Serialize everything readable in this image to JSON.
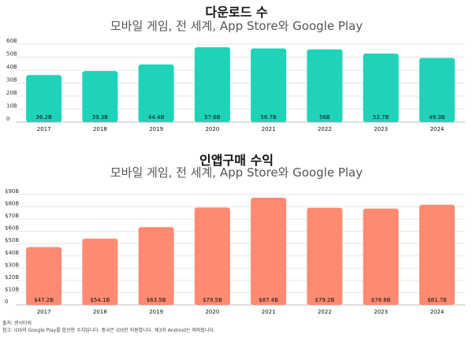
{
  "chart_data": [
    {
      "type": "bar",
      "title": "다운로드 수",
      "subtitle": "모바일 게임, 전 세계, App Store와 Google Play",
      "categories": [
        "2017",
        "2018",
        "2019",
        "2020",
        "2021",
        "2022",
        "2023",
        "2024"
      ],
      "values": [
        36.2,
        39.3,
        44.4,
        57.6,
        56.7,
        56.0,
        52.7,
        49.3
      ],
      "data_labels": [
        "36.2B",
        "39.3B",
        "44.4B",
        "57.6B",
        "56.7B",
        "56B",
        "52.7B",
        "49.3B"
      ],
      "yticks": [
        "0",
        "10B",
        "20B",
        "30B",
        "40B",
        "50B",
        "60B"
      ],
      "ylim": [
        0,
        60
      ],
      "grid": true,
      "bar_color": "#1fd3b8"
    },
    {
      "type": "bar",
      "title": "인앱구매 수익",
      "subtitle": "모바일 게임, 전 세계, App Store와 Google Play",
      "categories": [
        "2017",
        "2018",
        "2019",
        "2020",
        "2021",
        "2022",
        "2023",
        "2024"
      ],
      "values": [
        47.2,
        54.1,
        63.5,
        79.5,
        87.4,
        79.2,
        78.6,
        81.7
      ],
      "data_labels": [
        "$47.2B",
        "$54.1B",
        "$63.5B",
        "$79.5B",
        "$87.4B",
        "$79.2B",
        "$78.6B",
        "$81.7B"
      ],
      "yticks": [
        "0",
        "$10B",
        "$20B",
        "$30B",
        "$40B",
        "$50B",
        "$60B",
        "$70B",
        "$80B",
        "$90B"
      ],
      "ylim": [
        0,
        90
      ],
      "grid": true,
      "bar_color": "#fd8a72"
    }
  ],
  "footer": {
    "source": "출처: 센서타워",
    "note": "참고: iOS와 Google Play를 합산한 수치입니다. 중국은 iOS만 지원합니다. 제3자 Android는 제외됩니다."
  }
}
